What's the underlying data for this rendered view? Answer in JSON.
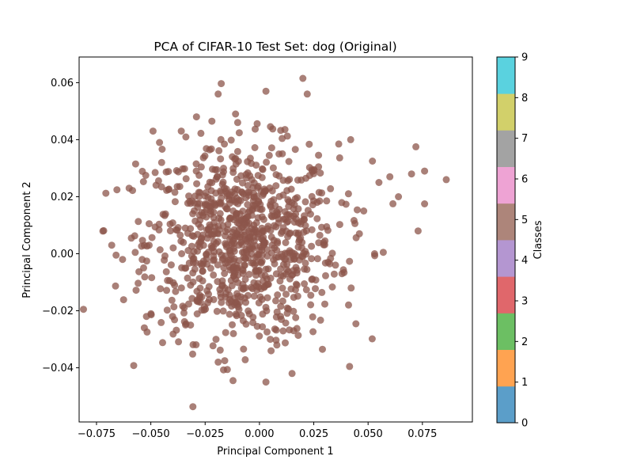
{
  "chart_data": {
    "type": "scatter",
    "title": "PCA of CIFAR-10 Test Set: dog (Original)",
    "xlabel": "Principal Component 1",
    "ylabel": "Principal Component 2",
    "xlim": [
      -0.083,
      0.098
    ],
    "ylim": [
      -0.059,
      0.069
    ],
    "xticks": [
      -0.075,
      -0.05,
      -0.025,
      0.0,
      0.025,
      0.05,
      0.075
    ],
    "xtick_labels": [
      "−0.075",
      "−0.050",
      "−0.025",
      "0.000",
      "0.025",
      "0.050",
      "0.075"
    ],
    "yticks": [
      -0.04,
      -0.02,
      0.0,
      0.02,
      0.04,
      0.06
    ],
    "ytick_labels": [
      "−0.04",
      "−0.02",
      "0.00",
      "0.02",
      "0.04",
      "0.06"
    ],
    "grid": false,
    "point_color": "#8c564b",
    "point_alpha": 0.75,
    "series": [
      {
        "class": 5,
        "cluster": {
          "n": 900,
          "mean_x": -0.008,
          "mean_y": 0.004,
          "sd_x": 0.022,
          "sd_y": 0.017
        },
        "points": [
          [
            -0.081,
            -0.0195
          ],
          [
            -0.068,
            0.003
          ],
          [
            -0.066,
            -0.0005
          ],
          [
            -0.063,
            -0.002
          ],
          [
            -0.06,
            0.023
          ],
          [
            -0.057,
            0.0315
          ],
          [
            -0.053,
            -0.026
          ],
          [
            -0.052,
            -0.022
          ],
          [
            -0.048,
            0.0285
          ],
          [
            -0.046,
            0.039
          ],
          [
            -0.049,
            0.043
          ],
          [
            -0.045,
            0.032
          ],
          [
            -0.04,
            -0.022
          ],
          [
            -0.034,
            -0.025
          ],
          [
            -0.02,
            -0.03
          ],
          [
            -0.019,
            -0.038
          ],
          [
            -0.016,
            -0.0375
          ],
          [
            -0.012,
            -0.028
          ],
          [
            -0.019,
            0.056
          ],
          [
            -0.011,
            0.049
          ],
          [
            -0.01,
            0.046
          ],
          [
            0.003,
            0.057
          ],
          [
            0.009,
            0.035
          ],
          [
            0.005,
            -0.03
          ],
          [
            0.008,
            -0.032
          ],
          [
            0.003,
            -0.045
          ],
          [
            0.015,
            -0.042
          ],
          [
            0.02,
            0.0615
          ],
          [
            0.022,
            0.056
          ],
          [
            0.029,
            -0.0335
          ],
          [
            0.041,
            -0.018
          ],
          [
            0.042,
            0.04
          ],
          [
            0.052,
            0.0325
          ],
          [
            0.055,
            0.025
          ],
          [
            0.06,
            0.027
          ],
          [
            0.064,
            0.02
          ],
          [
            0.07,
            0.028
          ],
          [
            0.072,
            0.0375
          ],
          [
            0.073,
            0.008
          ],
          [
            0.076,
            0.029
          ],
          [
            0.076,
            0.0175
          ],
          [
            0.086,
            0.026
          ],
          [
            0.053,
            0.0
          ],
          [
            0.057,
            0.0005
          ],
          [
            0.048,
            0.015
          ],
          [
            0.046,
            0.007
          ],
          [
            0.038,
            -0.007
          ],
          [
            0.035,
            -0.004
          ],
          [
            -0.029,
            0.048
          ],
          [
            -0.036,
            0.043
          ]
        ]
      }
    ],
    "colorbar": {
      "label": "Classes",
      "ticks": [
        "0",
        "1",
        "2",
        "3",
        "4",
        "5",
        "6",
        "7",
        "8",
        "9"
      ],
      "colors": [
        "#5b9ec9",
        "#ffa351",
        "#6cbf63",
        "#e0676b",
        "#b496d1",
        "#ad857a",
        "#eea3d4",
        "#a3a3a3",
        "#d2d06a",
        "#5ad2df"
      ]
    }
  }
}
